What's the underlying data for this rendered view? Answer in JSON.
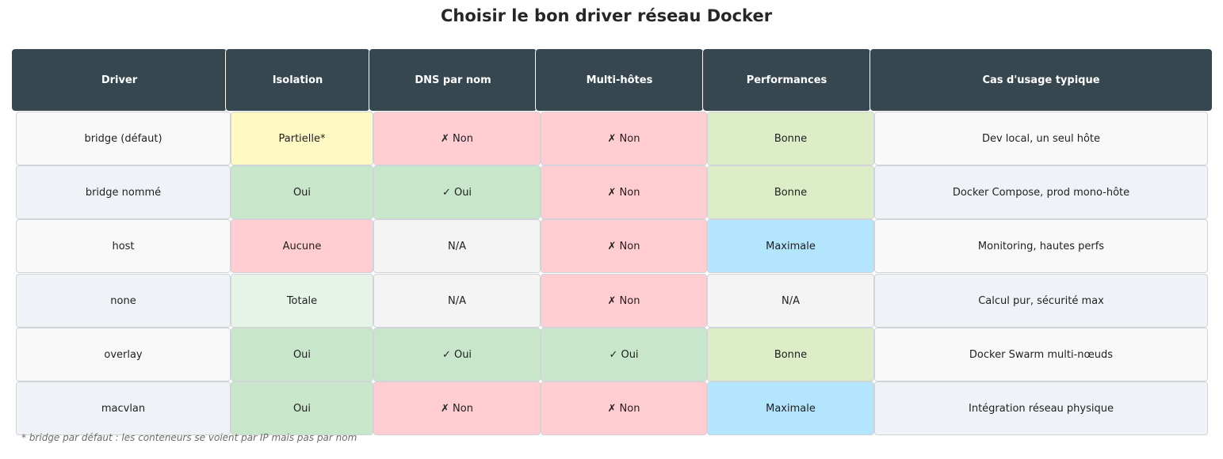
{
  "chart_data": {
    "type": "table",
    "title": "Choisir le bon driver réseau Docker",
    "columns": [
      "Driver",
      "Isolation",
      "DNS par nom",
      "Multi-hôtes",
      "Performances",
      "Cas d'usage typique"
    ],
    "rows": [
      [
        "bridge (défaut)",
        "Partielle*",
        "✗ Non",
        "✗ Non",
        "Bonne",
        "Dev local, un seul hôte"
      ],
      [
        "bridge nommé",
        "Oui",
        "✓ Oui",
        "✗ Non",
        "Bonne",
        "Docker Compose, prod mono-hôte"
      ],
      [
        "host",
        "Aucune",
        "N/A",
        "✗ Non",
        "Maximale",
        "Monitoring, hautes perfs"
      ],
      [
        "none",
        "Totale",
        "N/A",
        "✗ Non",
        "N/A",
        "Calcul pur, sécurité max"
      ],
      [
        "overlay",
        "Oui",
        "✓ Oui",
        "✓ Oui",
        "Bonne",
        "Docker Swarm multi-nœuds"
      ],
      [
        "macvlan",
        "Oui",
        "✗ Non",
        "✗ Non",
        "Maximale",
        "Intégration réseau physique"
      ]
    ],
    "cell_colors": [
      [
        "#f9f9f9",
        "#fff9c4",
        "#ffcdd2",
        "#ffcdd2",
        "#dcedc8",
        "#f9f9f9"
      ],
      [
        "#eff3f8",
        "#c8e6c9",
        "#c8e6c9",
        "#ffcdd2",
        "#dcedc8",
        "#eff3f8"
      ],
      [
        "#f9f9f9",
        "#ffcdd2",
        "#f4f4f4",
        "#ffcdd2",
        "#b3e5fc",
        "#f9f9f9"
      ],
      [
        "#eff3f8",
        "#e6f4e8",
        "#f4f4f4",
        "#ffcdd2",
        "#f4f4f4",
        "#eff3f8"
      ],
      [
        "#f9f9f9",
        "#c8e6c9",
        "#c8e6c9",
        "#c8e6c9",
        "#dcedc8",
        "#f9f9f9"
      ],
      [
        "#eff3f8",
        "#c8e6c9",
        "#ffcdd2",
        "#ffcdd2",
        "#b3e5fc",
        "#eff3f8"
      ]
    ],
    "header_color": "#37474f",
    "footnote": "* bridge par défaut : les conteneurs se voient par IP mais pas par nom"
  }
}
